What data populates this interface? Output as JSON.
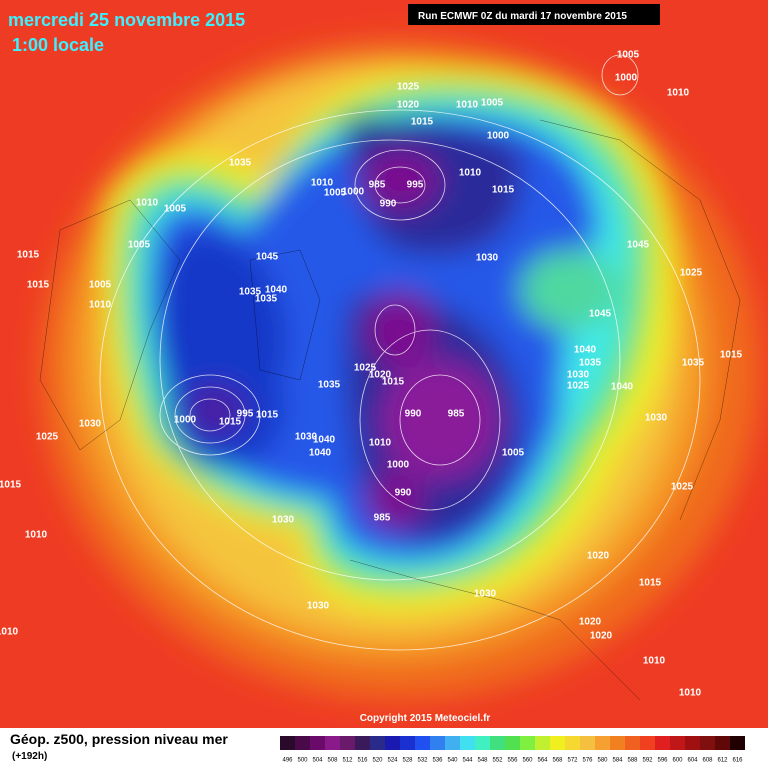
{
  "header": {
    "title": "mercredi 25 novembre 2015",
    "time": "1:00 locale"
  },
  "run": "Run ECMWF 0Z du mardi 17 novembre 2015",
  "copyright": "Copyright 2015 Meteociel.fr",
  "legend": {
    "title": "Géop. z500, pression niveau mer",
    "lead": "(+192h)",
    "scale": [
      {
        "value": 496,
        "color": "#2a0a2a"
      },
      {
        "value": 500,
        "color": "#4a0a4a"
      },
      {
        "value": 504,
        "color": "#6a0a6a"
      },
      {
        "value": 508,
        "color": "#8a1a8a"
      },
      {
        "value": 512,
        "color": "#6a1a6a"
      },
      {
        "value": 516,
        "color": "#3a1a5a"
      },
      {
        "value": 520,
        "color": "#2a2a8a"
      },
      {
        "value": 524,
        "color": "#1a1ab0"
      },
      {
        "value": 528,
        "color": "#1a30d0"
      },
      {
        "value": 532,
        "color": "#2050f0"
      },
      {
        "value": 536,
        "color": "#3080f0"
      },
      {
        "value": 540,
        "color": "#40b0f0"
      },
      {
        "value": 544,
        "color": "#40e0f0"
      },
      {
        "value": 548,
        "color": "#40f0c0"
      },
      {
        "value": 552,
        "color": "#40e080"
      },
      {
        "value": 556,
        "color": "#50e050"
      },
      {
        "value": 560,
        "color": "#80f040"
      },
      {
        "value": 564,
        "color": "#c0f030"
      },
      {
        "value": 568,
        "color": "#f0f020"
      },
      {
        "value": 572,
        "color": "#f5d830"
      },
      {
        "value": 576,
        "color": "#f5c040"
      },
      {
        "value": 580,
        "color": "#f5a030"
      },
      {
        "value": 584,
        "color": "#f08020"
      },
      {
        "value": 588,
        "color": "#f06020"
      },
      {
        "value": 592,
        "color": "#f04020"
      },
      {
        "value": 596,
        "color": "#e02020"
      },
      {
        "value": 600,
        "color": "#c01818"
      },
      {
        "value": 604,
        "color": "#a01010"
      },
      {
        "value": 608,
        "color": "#801010"
      },
      {
        "value": 612,
        "color": "#600808"
      },
      {
        "value": 616,
        "color": "#200000"
      }
    ]
  },
  "isobars": [
    1005,
    1000,
    1010,
    1025,
    1020,
    1010,
    1005,
    1015,
    1000,
    985,
    995,
    990,
    1010,
    1015,
    1010,
    1005,
    1000,
    1035,
    1010,
    1005,
    1005,
    1015,
    1015,
    1005,
    1010,
    1045,
    1030,
    1045,
    1025,
    1045,
    1035,
    1040,
    1035,
    1025,
    1020,
    1015,
    1035,
    1040,
    1035,
    1030,
    1025,
    1040,
    1035,
    1015,
    1030,
    1025,
    1000,
    995,
    1015,
    990,
    985,
    1030,
    1040,
    1040,
    1010,
    1000,
    1005,
    1030,
    1025,
    1015,
    990,
    985,
    1030,
    1020,
    1015,
    1030,
    1030,
    1020,
    1020,
    1010,
    1010,
    1010,
    1010,
    1015
  ]
}
